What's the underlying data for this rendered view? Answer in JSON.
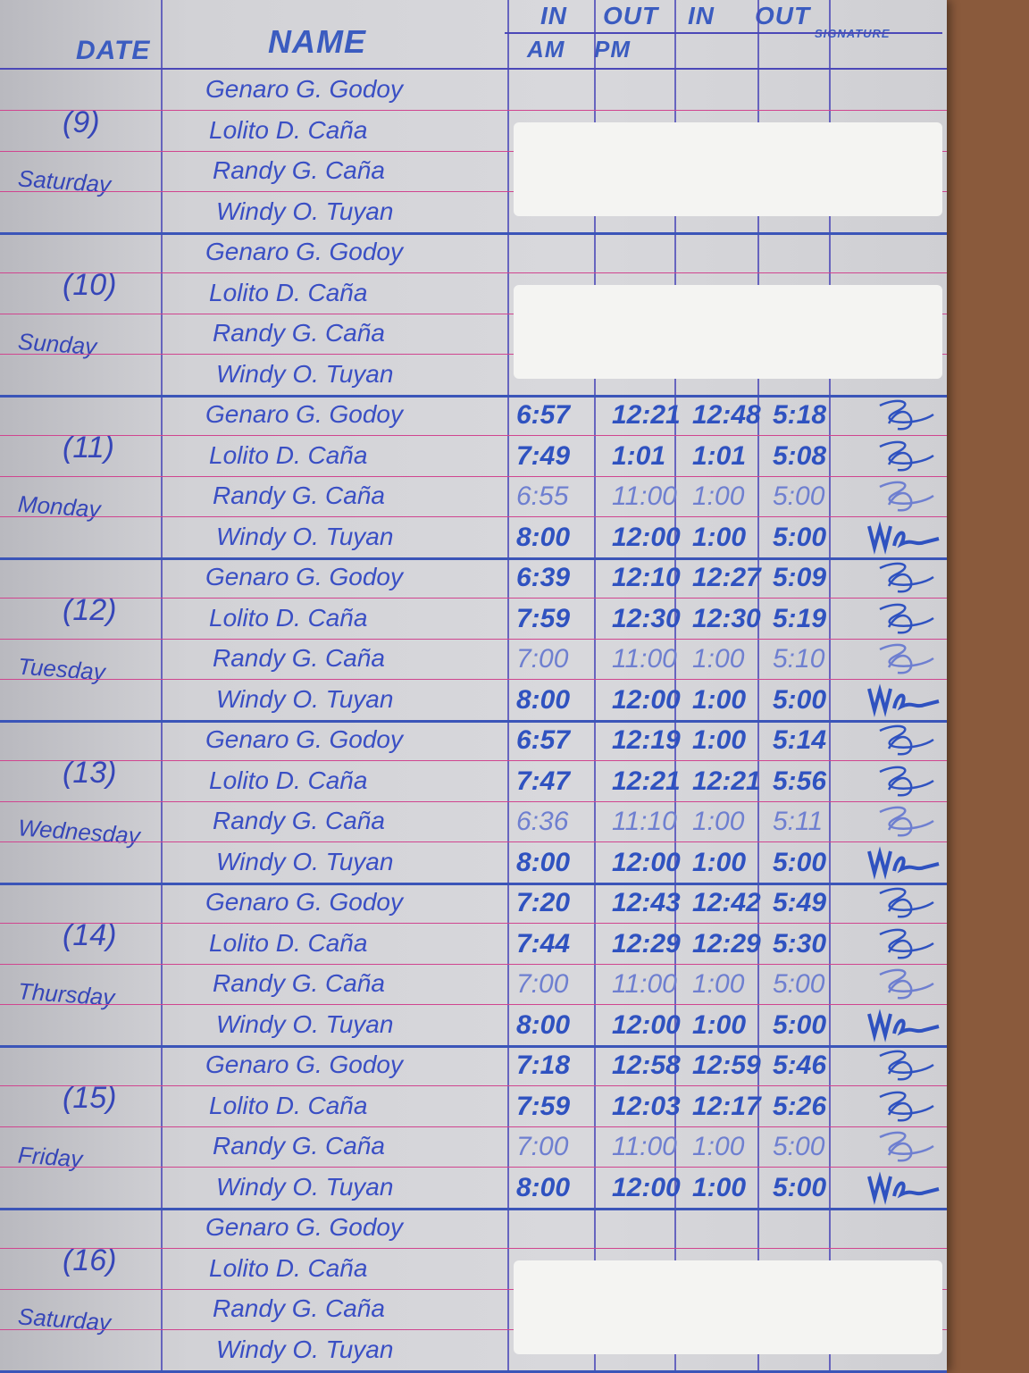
{
  "header": {
    "date": "DATE",
    "name": "NAME",
    "in1": "IN",
    "out1": "OUT",
    "in2": "IN",
    "out2": "OUT",
    "signature": "SIGNATURE",
    "am": "AM",
    "pm": "PM"
  },
  "colors": {
    "ink": "#2f52c0",
    "ruling": "#d0458f",
    "paper": "#d6d6da",
    "desk": "#8a5a3c"
  },
  "days": [
    {
      "date": "(9)",
      "day": "Saturday",
      "redacted": true,
      "entries": [
        {
          "name": "Genaro G. Godoy",
          "times": [
            "",
            "",
            "",
            ""
          ]
        },
        {
          "name": "Lolito D. Caña",
          "times": [
            "",
            "",
            "",
            ""
          ]
        },
        {
          "name": "Randy G. Caña",
          "times": [
            "",
            "",
            "",
            ""
          ]
        },
        {
          "name": "Windy O. Tuyan",
          "times": [
            "",
            "",
            "",
            ""
          ]
        }
      ]
    },
    {
      "date": "(10)",
      "day": "Sunday",
      "redacted": true,
      "entries": [
        {
          "name": "Genaro G. Godoy",
          "times": [
            "",
            "",
            "",
            ""
          ]
        },
        {
          "name": "Lolito D. Caña",
          "times": [
            "",
            "",
            "",
            ""
          ]
        },
        {
          "name": "Randy G. Caña",
          "times": [
            "",
            "",
            "",
            ""
          ]
        },
        {
          "name": "Windy O. Tuyan",
          "times": [
            "",
            "",
            "",
            ""
          ]
        }
      ]
    },
    {
      "date": "(11)",
      "day": "Monday",
      "redacted": false,
      "entries": [
        {
          "name": "Genaro G. Godoy",
          "times": [
            "6:57",
            "12:21",
            "12:48",
            "5:18"
          ]
        },
        {
          "name": "Lolito D. Caña",
          "times": [
            "7:49",
            "1:01",
            "1:01",
            "5:08"
          ]
        },
        {
          "name": "Randy G. Caña",
          "times": [
            "6:55",
            "11:00",
            "1:00",
            "5:00"
          ]
        },
        {
          "name": "Windy O. Tuyan",
          "times": [
            "8:00",
            "12:00",
            "1:00",
            "5:00"
          ]
        }
      ]
    },
    {
      "date": "(12)",
      "day": "Tuesday",
      "redacted": false,
      "entries": [
        {
          "name": "Genaro G. Godoy",
          "times": [
            "6:39",
            "12:10",
            "12:27",
            "5:09"
          ]
        },
        {
          "name": "Lolito D. Caña",
          "times": [
            "7:59",
            "12:30",
            "12:30",
            "5:19"
          ]
        },
        {
          "name": "Randy G. Caña",
          "times": [
            "7:00",
            "11:00",
            "1:00",
            "5:10"
          ]
        },
        {
          "name": "Windy O. Tuyan",
          "times": [
            "8:00",
            "12:00",
            "1:00",
            "5:00"
          ]
        }
      ]
    },
    {
      "date": "(13)",
      "day": "Wednesday",
      "redacted": false,
      "entries": [
        {
          "name": "Genaro G. Godoy",
          "times": [
            "6:57",
            "12:19",
            "1:00",
            "5:14"
          ]
        },
        {
          "name": "Lolito D. Caña",
          "times": [
            "7:47",
            "12:21",
            "12:21",
            "5:56"
          ]
        },
        {
          "name": "Randy G. Caña",
          "times": [
            "6:36",
            "11:10",
            "1:00",
            "5:11"
          ]
        },
        {
          "name": "Windy O. Tuyan",
          "times": [
            "8:00",
            "12:00",
            "1:00",
            "5:00"
          ]
        }
      ]
    },
    {
      "date": "(14)",
      "day": "Thursday",
      "redacted": false,
      "entries": [
        {
          "name": "Genaro G. Godoy",
          "times": [
            "7:20",
            "12:43",
            "12:42",
            "5:49"
          ]
        },
        {
          "name": "Lolito D. Caña",
          "times": [
            "7:44",
            "12:29",
            "12:29",
            "5:30"
          ]
        },
        {
          "name": "Randy G. Caña",
          "times": [
            "7:00",
            "11:00",
            "1:00",
            "5:00"
          ]
        },
        {
          "name": "Windy O. Tuyan",
          "times": [
            "8:00",
            "12:00",
            "1:00",
            "5:00"
          ]
        }
      ]
    },
    {
      "date": "(15)",
      "day": "Friday",
      "redacted": false,
      "entries": [
        {
          "name": "Genaro G. Godoy",
          "times": [
            "7:18",
            "12:58",
            "12:59",
            "5:46"
          ]
        },
        {
          "name": "Lolito D. Caña",
          "times": [
            "7:59",
            "12:03",
            "12:17",
            "5:26"
          ]
        },
        {
          "name": "Randy G. Caña",
          "times": [
            "7:00",
            "11:00",
            "1:00",
            "5:00"
          ]
        },
        {
          "name": "Windy O. Tuyan",
          "times": [
            "8:00",
            "12:00",
            "1:00",
            "5:00"
          ]
        }
      ]
    },
    {
      "date": "(16)",
      "day": "Saturday",
      "redacted": true,
      "entries": [
        {
          "name": "Genaro G. Godoy",
          "times": [
            "",
            "",
            "",
            ""
          ]
        },
        {
          "name": "Lolito D. Caña",
          "times": [
            "",
            "",
            "",
            ""
          ]
        },
        {
          "name": "Randy G. Caña",
          "times": [
            "",
            "",
            "",
            ""
          ]
        },
        {
          "name": "Windy O. Tuyan",
          "times": [
            "",
            "",
            "",
            ""
          ]
        }
      ]
    }
  ]
}
